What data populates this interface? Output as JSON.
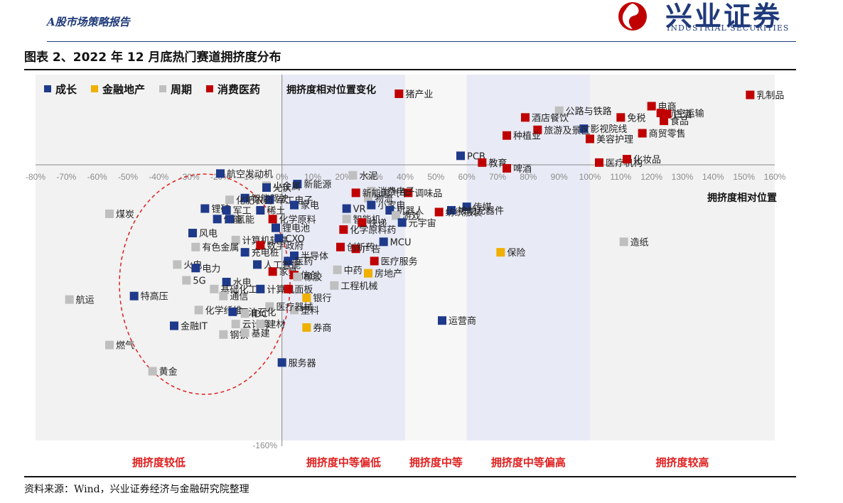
{
  "header": {
    "report_title": "A股市场策略报告",
    "logo_cn": "兴业证券",
    "logo_en": "INDUSTRIAL SECURITIES"
  },
  "chart_title": "图表 2、2022 年 12 月底热门赛道拥挤度分布",
  "source": "资料来源：Wind，兴业证券经济与金融研究院整理",
  "colors": {
    "成长": "#1f3a8a",
    "金融地产": "#f0b000",
    "周期": "#bfbfbf",
    "消费医药": "#c00000"
  },
  "chart_data": {
    "type": "scatter",
    "xlabel": "拥挤度相对位置",
    "ylabel": "拥挤度相对位置变化",
    "xlim": [
      -0.8,
      1.6
    ],
    "ylim": [
      -1.6,
      0.8
    ],
    "x_ticks": [
      "-80%",
      "-70%",
      "-60%",
      "-50%",
      "-40%",
      "-30%",
      "-20%",
      "-10%",
      "0%",
      "10%",
      "20%",
      "30%",
      "40%",
      "50%",
      "60%",
      "70%",
      "80%",
      "90%",
      "100%",
      "110%",
      "120%",
      "130%",
      "140%",
      "150%",
      "160%"
    ],
    "y_ticks_visible": [
      "-160%"
    ],
    "legend": [
      {
        "name": "成长",
        "color": "#1f3a8a"
      },
      {
        "name": "金融地产",
        "color": "#f0b000"
      },
      {
        "name": "周期",
        "color": "#bfbfbf"
      },
      {
        "name": "消费医药",
        "color": "#c00000"
      }
    ],
    "zones": [
      {
        "label": "拥挤度较低",
        "x": [
          -0.8,
          0.0
        ]
      },
      {
        "label": "拥挤度中等偏低",
        "x": [
          0.0,
          0.4
        ]
      },
      {
        "label": "拥挤度中等",
        "x": [
          0.4,
          0.6
        ]
      },
      {
        "label": "拥挤度中等偏高",
        "x": [
          0.6,
          1.0
        ]
      },
      {
        "label": "拥挤度较高",
        "x": [
          1.0,
          1.6
        ]
      }
    ],
    "points": [
      {
        "name": "乳制品",
        "x": 1.52,
        "y": 0.62,
        "g": "消费医药"
      },
      {
        "name": "电商",
        "x": 1.2,
        "y": 0.52,
        "g": "消费医药"
      },
      {
        "name": "航空运输",
        "x": 1.23,
        "y": 0.46,
        "g": "消费医药"
      },
      {
        "name": "白酒",
        "x": 1.25,
        "y": 0.45,
        "g": "消费医药"
      },
      {
        "name": "食品",
        "x": 1.24,
        "y": 0.39,
        "g": "消费医药"
      },
      {
        "name": "免税",
        "x": 1.1,
        "y": 0.42,
        "g": "消费医药"
      },
      {
        "name": "商贸零售",
        "x": 1.17,
        "y": 0.28,
        "g": "消费医药"
      },
      {
        "name": "美容护理",
        "x": 1.0,
        "y": 0.23,
        "g": "消费医药"
      },
      {
        "name": "公路与铁路",
        "x": 0.9,
        "y": 0.48,
        "g": "周期"
      },
      {
        "name": "酒店餐饮",
        "x": 0.79,
        "y": 0.42,
        "g": "消费医药"
      },
      {
        "name": "影视院线",
        "x": 0.98,
        "y": 0.32,
        "g": "成长"
      },
      {
        "name": "旅游及景区",
        "x": 0.83,
        "y": 0.31,
        "g": "消费医药"
      },
      {
        "name": "种植业",
        "x": 0.73,
        "y": 0.26,
        "g": "消费医药"
      },
      {
        "name": "猪产业",
        "x": 0.38,
        "y": 0.63,
        "g": "消费医药"
      },
      {
        "name": "PCB",
        "x": 0.58,
        "y": 0.08,
        "g": "成长"
      },
      {
        "name": "教育",
        "x": 0.65,
        "y": 0.02,
        "g": "消费医药"
      },
      {
        "name": "啤酒",
        "x": 0.73,
        "y": -0.02,
        "g": "消费医药"
      },
      {
        "name": "医疗机构",
        "x": 1.03,
        "y": 0.02,
        "g": "消费医药"
      },
      {
        "name": "化妆品",
        "x": 1.12,
        "y": 0.05,
        "g": "消费医药"
      },
      {
        "name": "造纸",
        "x": 1.11,
        "y": -0.44,
        "g": "周期"
      },
      {
        "name": "保险",
        "x": 0.71,
        "y": -0.5,
        "g": "金融地产"
      },
      {
        "name": "运营商",
        "x": 0.52,
        "y": -0.89,
        "g": "成长"
      },
      {
        "name": "传媒",
        "x": 0.6,
        "y": -0.24,
        "g": "成长"
      },
      {
        "name": "被动元器件",
        "x": 0.55,
        "y": -0.26,
        "g": "成长"
      },
      {
        "name": "纺织服装",
        "x": 0.51,
        "y": -0.27,
        "g": "消费医药"
      },
      {
        "name": "调味品",
        "x": 0.41,
        "y": -0.16,
        "g": "消费医药"
      },
      {
        "name": "水泥",
        "x": 0.23,
        "y": -0.06,
        "g": "周期"
      },
      {
        "name": "消费电子",
        "x": 0.29,
        "y": -0.15,
        "g": "周期"
      },
      {
        "name": "物流",
        "x": 0.28,
        "y": -0.19,
        "g": "周期"
      },
      {
        "name": "新能源汽车",
        "x": 0.24,
        "y": -0.16,
        "g": "消费医药"
      },
      {
        "name": "小家电",
        "x": 0.29,
        "y": -0.23,
        "g": "成长"
      },
      {
        "name": "机器人",
        "x": 0.35,
        "y": -0.26,
        "g": "成长"
      },
      {
        "name": "游戏",
        "x": 0.37,
        "y": -0.29,
        "g": "周期"
      },
      {
        "name": "元宇宙",
        "x": 0.39,
        "y": -0.33,
        "g": "成长"
      },
      {
        "name": "VR",
        "x": 0.21,
        "y": -0.25,
        "g": "成长"
      },
      {
        "name": "智能机",
        "x": 0.21,
        "y": -0.31,
        "g": "周期"
      },
      {
        "name": "快递",
        "x": 0.26,
        "y": -0.33,
        "g": "消费医药"
      },
      {
        "name": "化学原料药",
        "x": 0.2,
        "y": -0.37,
        "g": "消费医药"
      },
      {
        "name": "MCU",
        "x": 0.33,
        "y": -0.44,
        "g": "成长"
      },
      {
        "name": "广告",
        "x": 0.24,
        "y": -0.48,
        "g": "消费医药"
      },
      {
        "name": "创新药",
        "x": 0.19,
        "y": -0.47,
        "g": "消费医药"
      },
      {
        "name": "医疗服务",
        "x": 0.3,
        "y": -0.55,
        "g": "消费医药"
      },
      {
        "name": "中药",
        "x": 0.18,
        "y": -0.6,
        "g": "周期"
      },
      {
        "name": "房地产",
        "x": 0.28,
        "y": -0.62,
        "g": "金融地产"
      },
      {
        "name": "工程机械",
        "x": 0.17,
        "y": -0.69,
        "g": "周期"
      },
      {
        "name": "银行",
        "x": 0.08,
        "y": -0.76,
        "g": "金融地产"
      },
      {
        "name": "塑料",
        "x": 0.04,
        "y": -0.83,
        "g": "周期"
      },
      {
        "name": "券商",
        "x": 0.08,
        "y": -0.93,
        "g": "金融地产"
      },
      {
        "name": "新能源",
        "x": 0.05,
        "y": -0.11,
        "g": "成长"
      },
      {
        "name": "小金属",
        "x": -0.05,
        "y": -0.12,
        "g": "周期"
      },
      {
        "name": "光伏",
        "x": -0.05,
        "y": -0.13,
        "g": "成长"
      },
      {
        "name": "航空发动机",
        "x": -0.2,
        "y": -0.05,
        "g": "成长"
      },
      {
        "name": "智能驾驶",
        "x": -0.12,
        "y": -0.19,
        "g": "成长"
      },
      {
        "name": "军工电子",
        "x": -0.04,
        "y": -0.2,
        "g": "成长"
      },
      {
        "name": "化肥农药",
        "x": -0.17,
        "y": -0.2,
        "g": "周期"
      },
      {
        "name": "家电",
        "x": 0.04,
        "y": -0.23,
        "g": "成长"
      },
      {
        "name": "锂矿",
        "x": -0.25,
        "y": -0.25,
        "g": "成长"
      },
      {
        "name": "军工",
        "x": -0.18,
        "y": -0.26,
        "g": "成长"
      },
      {
        "name": "稀土",
        "x": -0.07,
        "y": -0.26,
        "g": "成长"
      },
      {
        "name": "储能",
        "x": -0.21,
        "y": -0.31,
        "g": "成长"
      },
      {
        "name": "氢能",
        "x": -0.17,
        "y": -0.31,
        "g": "成长"
      },
      {
        "name": "化学原料",
        "x": -0.03,
        "y": -0.31,
        "g": "消费医药"
      },
      {
        "name": "风电",
        "x": -0.29,
        "y": -0.39,
        "g": "成长"
      },
      {
        "name": "锂电池",
        "x": -0.02,
        "y": -0.36,
        "g": "成长"
      },
      {
        "name": "计算机软件",
        "x": -0.15,
        "y": -0.43,
        "g": "周期"
      },
      {
        "name": "CXO",
        "x": -0.01,
        "y": -0.42,
        "g": "成长"
      },
      {
        "name": "数字政府",
        "x": -0.07,
        "y": -0.46,
        "g": "消费医药"
      },
      {
        "name": "有色金属",
        "x": -0.28,
        "y": -0.47,
        "g": "周期"
      },
      {
        "name": "充电桩",
        "x": -0.12,
        "y": -0.5,
        "g": "成长"
      },
      {
        "name": "半导体",
        "x": 0.04,
        "y": -0.52,
        "g": "成长"
      },
      {
        "name": "医药",
        "x": 0.02,
        "y": -0.55,
        "g": "成长"
      },
      {
        "name": "火电",
        "x": -0.34,
        "y": -0.57,
        "g": "周期"
      },
      {
        "name": "人工智能",
        "x": -0.08,
        "y": -0.57,
        "g": "成长"
      },
      {
        "name": "电力",
        "x": -0.28,
        "y": -0.59,
        "g": "成长"
      },
      {
        "name": "家具",
        "x": -0.03,
        "y": -0.61,
        "g": "消费医药"
      },
      {
        "name": "信创",
        "x": 0.04,
        "y": -0.63,
        "g": "消费医药"
      },
      {
        "name": "橡胶",
        "x": 0.05,
        "y": -0.64,
        "g": "周期"
      },
      {
        "name": "5G",
        "x": -0.31,
        "y": -0.66,
        "g": "周期"
      },
      {
        "name": "水电",
        "x": -0.18,
        "y": -0.67,
        "g": "成长"
      },
      {
        "name": "基础化工",
        "x": -0.22,
        "y": -0.71,
        "g": "周期"
      },
      {
        "name": "计算机",
        "x": -0.07,
        "y": -0.71,
        "g": "成长"
      },
      {
        "name": "面板",
        "x": 0.02,
        "y": -0.71,
        "g": "消费医药"
      },
      {
        "name": "通信",
        "x": -0.19,
        "y": -0.75,
        "g": "周期"
      },
      {
        "name": "航运",
        "x": -0.69,
        "y": -0.77,
        "g": "周期"
      },
      {
        "name": "特高压",
        "x": -0.48,
        "y": -0.75,
        "g": "成长"
      },
      {
        "name": "医疗器械",
        "x": -0.04,
        "y": -0.81,
        "g": "周期"
      },
      {
        "name": "化学纤维",
        "x": -0.27,
        "y": -0.83,
        "g": "周期"
      },
      {
        "name": "石油石化",
        "x": -0.16,
        "y": -0.84,
        "g": "成长"
      },
      {
        "name": "IDC",
        "x": -0.12,
        "y": -0.85,
        "g": "周期"
      },
      {
        "name": "金融IT",
        "x": -0.35,
        "y": -0.92,
        "g": "成长"
      },
      {
        "name": "云计算",
        "x": -0.15,
        "y": -0.91,
        "g": "周期"
      },
      {
        "name": "建材",
        "x": -0.07,
        "y": -0.91,
        "g": "周期"
      },
      {
        "name": "钢铁",
        "x": -0.19,
        "y": -0.97,
        "g": "周期"
      },
      {
        "name": "基建",
        "x": -0.12,
        "y": -0.96,
        "g": "周期"
      },
      {
        "name": "燃气",
        "x": -0.56,
        "y": -1.03,
        "g": "周期"
      },
      {
        "name": "服务器",
        "x": 0.0,
        "y": -1.13,
        "g": "成长"
      },
      {
        "name": "煤炭",
        "x": -0.56,
        "y": -0.28,
        "g": "周期"
      },
      {
        "name": "黄金",
        "x": -0.42,
        "y": -1.18,
        "g": "周期"
      }
    ]
  }
}
